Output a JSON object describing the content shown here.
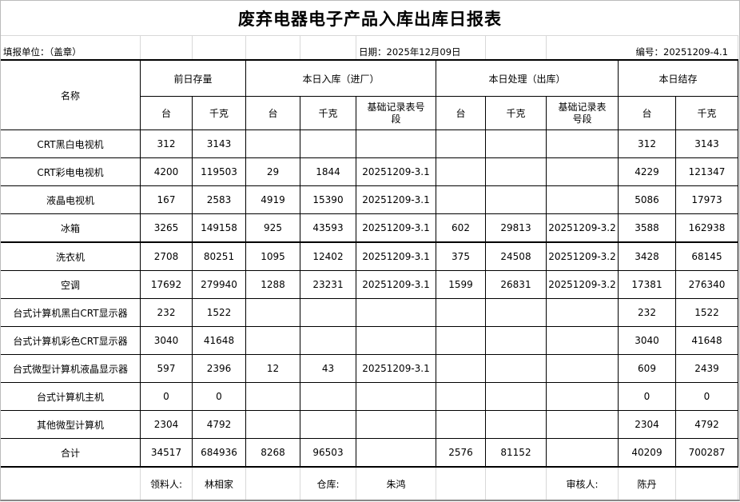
{
  "title": "废弃电器电子产品入库出库日报表",
  "info": {
    "unit": "填报单位：（盖章）",
    "date": "日期：2025年12月09日",
    "number": "编号：20251209-4.1"
  },
  "headers": {
    "name": "名称",
    "groups": [
      "前日存量",
      "本日入库（进厂）",
      "本日处理（出库）",
      "本日结存"
    ],
    "sub": [
      "台",
      "千克",
      "台",
      "千克",
      "基础记录表号段",
      "台",
      "千克",
      "基础记录表号段",
      "台",
      "千克"
    ]
  },
  "rows": [
    [
      "CRT黑白电视机",
      "312",
      "3143",
      "",
      "",
      "",
      "",
      "",
      "",
      "312",
      "3143"
    ],
    [
      "CRT彩电电视机",
      "4200",
      "119503",
      "29",
      "1844",
      "20251209-3.1",
      "",
      "",
      "",
      "4229",
      "121347"
    ],
    [
      "液晶电视机",
      "167",
      "2583",
      "4919",
      "15390",
      "20251209-3.1",
      "",
      "",
      "",
      "5086",
      "17973"
    ],
    [
      "冰箱",
      "3265",
      "149158",
      "925",
      "43593",
      "20251209-3.1",
      "602",
      "29813",
      "20251209-3.2",
      "3588",
      "162938"
    ],
    [
      "洗衣机",
      "2708",
      "80251",
      "1095",
      "12402",
      "20251209-3.1",
      "375",
      "24508",
      "20251209-3.2",
      "3428",
      "68145"
    ],
    [
      "空调",
      "17692",
      "279940",
      "1288",
      "23231",
      "20251209-3.1",
      "1599",
      "26831",
      "20251209-3.2",
      "17381",
      "276340"
    ],
    [
      "台式计算机黑白CRT显示器",
      "232",
      "1522",
      "",
      "",
      "",
      "",
      "",
      "",
      "232",
      "1522"
    ],
    [
      "台式计算机彩色CRT显示器",
      "3040",
      "41648",
      "",
      "",
      "",
      "",
      "",
      "",
      "3040",
      "41648"
    ],
    [
      "台式微型计算机液晶显示器",
      "597",
      "2396",
      "12",
      "43",
      "20251209-3.1",
      "",
      "",
      "",
      "609",
      "2439"
    ],
    [
      "台式计算机主机",
      "0",
      "0",
      "",
      "",
      "",
      "",
      "",
      "",
      "0",
      "0"
    ],
    [
      "其他微型计算机",
      "2304",
      "4792",
      "",
      "",
      "",
      "",
      "",
      "",
      "2304",
      "4792"
    ],
    [
      "合计",
      "34517",
      "684936",
      "8268",
      "96503",
      "",
      "2576",
      "81152",
      "",
      "40209",
      "700287"
    ]
  ],
  "footer": {
    "receiver_label": "领料人:",
    "receiver": "林相家",
    "warehouse_label": "仓库:",
    "warehouse": "朱鸿",
    "reviewer_label": "审核人:",
    "reviewer": "陈丹"
  }
}
